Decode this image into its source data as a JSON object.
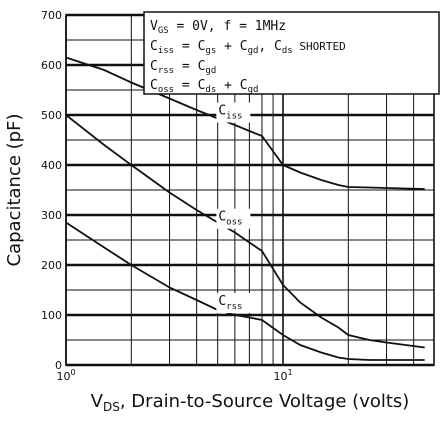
{
  "chart_data": {
    "type": "line",
    "x_scale": "log",
    "xlim": [
      1,
      45
    ],
    "ylim": [
      0,
      700
    ],
    "grid": true,
    "xlabel": "V_DS, Drain-to-Source Voltage (volts)",
    "xlabel_parts": {
      "main": "V",
      "sub": "DS",
      "rest": ", Drain-to-Source Voltage (volts)"
    },
    "ylabel": "Capacitance (pF)",
    "y_ticks": [
      0,
      100,
      200,
      300,
      400,
      500,
      600,
      700
    ],
    "x_ticks": [
      {
        "value": 1,
        "base": "10",
        "exp": "0"
      },
      {
        "value": 10,
        "base": "10",
        "exp": "1"
      }
    ],
    "legend_lines": [
      "V_GS = 0V,  f = 1MHz",
      "C_iss = C_gs + C_gd, C_ds SHORTED",
      "C_rss = C_gd",
      "C_oss = C_ds + C_gd"
    ],
    "series": [
      {
        "name": "C_iss",
        "label_main": "C",
        "label_sub": "iss",
        "x": [
          1,
          1.5,
          2,
          3,
          4,
          5,
          6,
          7,
          8,
          10,
          12,
          15,
          18,
          20,
          25,
          30,
          45
        ],
        "y": [
          615,
          590,
          565,
          533,
          510,
          493,
          480,
          468,
          458,
          400,
          385,
          370,
          360,
          356,
          355,
          354,
          352
        ]
      },
      {
        "name": "C_oss",
        "label_main": "C",
        "label_sub": "oss",
        "x": [
          1,
          1.5,
          2,
          3,
          4,
          5,
          6,
          7,
          8,
          10,
          12,
          15,
          18,
          20,
          25,
          30,
          45
        ],
        "y": [
          500,
          440,
          400,
          345,
          310,
          285,
          265,
          245,
          228,
          160,
          125,
          95,
          75,
          60,
          50,
          45,
          35
        ]
      },
      {
        "name": "C_rss",
        "label_main": "C",
        "label_sub": "rss",
        "x": [
          1,
          1.5,
          2,
          3,
          4,
          5,
          6,
          7,
          8,
          10,
          12,
          15,
          18,
          20,
          25,
          30,
          45
        ],
        "y": [
          285,
          235,
          200,
          155,
          130,
          110,
          100,
          95,
          90,
          60,
          40,
          25,
          15,
          12,
          10,
          10,
          10
        ]
      }
    ]
  }
}
